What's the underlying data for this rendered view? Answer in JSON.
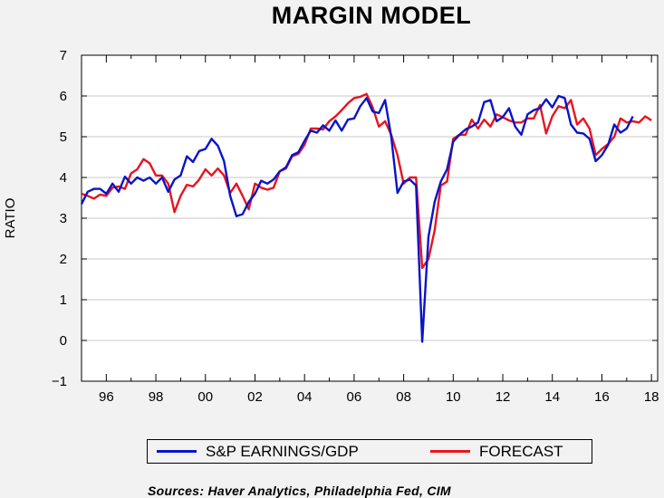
{
  "chart_data": {
    "type": "line",
    "title": "MARGIN MODEL",
    "xlabel": "",
    "ylabel": "RATIO",
    "xlim": [
      1995.0,
      2018.25
    ],
    "ylim": [
      -1,
      7
    ],
    "yticks": [
      7,
      6,
      5,
      4,
      3,
      2,
      1,
      0,
      -1
    ],
    "ytick_labels": [
      "7",
      "6",
      "5",
      "4",
      "3",
      "2",
      "1",
      "0",
      "−1"
    ],
    "xticks": [
      1996,
      1998,
      2000,
      2002,
      2004,
      2006,
      2008,
      2010,
      2012,
      2014,
      2016,
      2018
    ],
    "xtick_labels": [
      "96",
      "98",
      "00",
      "02",
      "04",
      "06",
      "08",
      "10",
      "12",
      "14",
      "16",
      "18"
    ],
    "grid": true,
    "legend_position": "bottom",
    "series": [
      {
        "name": "S&P EARNINGS/GDP",
        "color": "#0a14c8",
        "points": [
          [
            1995.0,
            3.35
          ],
          [
            1995.25,
            3.65
          ],
          [
            1995.5,
            3.72
          ],
          [
            1995.75,
            3.72
          ],
          [
            1996.0,
            3.6
          ],
          [
            1996.25,
            3.85
          ],
          [
            1996.5,
            3.65
          ],
          [
            1996.75,
            4.02
          ],
          [
            1997.0,
            3.85
          ],
          [
            1997.25,
            4.0
          ],
          [
            1997.5,
            3.92
          ],
          [
            1997.75,
            4.0
          ],
          [
            1998.0,
            3.85
          ],
          [
            1998.25,
            4.0
          ],
          [
            1998.5,
            3.65
          ],
          [
            1998.75,
            3.95
          ],
          [
            1999.0,
            4.05
          ],
          [
            1999.25,
            4.52
          ],
          [
            1999.5,
            4.38
          ],
          [
            1999.75,
            4.65
          ],
          [
            2000.0,
            4.7
          ],
          [
            2000.25,
            4.95
          ],
          [
            2000.5,
            4.78
          ],
          [
            2000.75,
            4.4
          ],
          [
            2001.0,
            3.55
          ],
          [
            2001.25,
            3.05
          ],
          [
            2001.5,
            3.1
          ],
          [
            2001.75,
            3.4
          ],
          [
            2002.0,
            3.6
          ],
          [
            2002.25,
            3.92
          ],
          [
            2002.5,
            3.85
          ],
          [
            2002.75,
            3.95
          ],
          [
            2003.0,
            4.15
          ],
          [
            2003.25,
            4.25
          ],
          [
            2003.5,
            4.55
          ],
          [
            2003.75,
            4.62
          ],
          [
            2004.0,
            4.9
          ],
          [
            2004.25,
            5.15
          ],
          [
            2004.5,
            5.1
          ],
          [
            2004.75,
            5.28
          ],
          [
            2005.0,
            5.15
          ],
          [
            2005.25,
            5.4
          ],
          [
            2005.5,
            5.15
          ],
          [
            2005.75,
            5.42
          ],
          [
            2006.0,
            5.45
          ],
          [
            2006.25,
            5.75
          ],
          [
            2006.5,
            5.95
          ],
          [
            2006.75,
            5.62
          ],
          [
            2007.0,
            5.58
          ],
          [
            2007.25,
            5.9
          ],
          [
            2007.5,
            5.0
          ],
          [
            2007.75,
            3.62
          ],
          [
            2008.0,
            3.9
          ],
          [
            2008.25,
            3.95
          ],
          [
            2008.5,
            3.8
          ],
          [
            2008.75,
            -0.03
          ],
          [
            2009.0,
            2.55
          ],
          [
            2009.25,
            3.4
          ],
          [
            2009.5,
            3.9
          ],
          [
            2009.75,
            4.2
          ],
          [
            2010.0,
            4.88
          ],
          [
            2010.25,
            5.05
          ],
          [
            2010.5,
            5.18
          ],
          [
            2010.75,
            5.25
          ],
          [
            2011.0,
            5.35
          ],
          [
            2011.25,
            5.85
          ],
          [
            2011.5,
            5.9
          ],
          [
            2011.75,
            5.38
          ],
          [
            2012.0,
            5.48
          ],
          [
            2012.25,
            5.7
          ],
          [
            2012.5,
            5.25
          ],
          [
            2012.75,
            5.05
          ],
          [
            2013.0,
            5.55
          ],
          [
            2013.25,
            5.65
          ],
          [
            2013.5,
            5.7
          ],
          [
            2013.75,
            5.92
          ],
          [
            2014.0,
            5.72
          ],
          [
            2014.25,
            6.0
          ],
          [
            2014.5,
            5.95
          ],
          [
            2014.75,
            5.3
          ],
          [
            2015.0,
            5.1
          ],
          [
            2015.25,
            5.08
          ],
          [
            2015.5,
            4.95
          ],
          [
            2015.75,
            4.4
          ],
          [
            2016.0,
            4.55
          ],
          [
            2016.25,
            4.8
          ],
          [
            2016.5,
            5.3
          ],
          [
            2016.75,
            5.1
          ],
          [
            2017.0,
            5.2
          ],
          [
            2017.25,
            5.5
          ]
        ]
      },
      {
        "name": "FORECAST",
        "color": "#e8141e",
        "points": [
          [
            1995.0,
            3.6
          ],
          [
            1995.25,
            3.55
          ],
          [
            1995.5,
            3.48
          ],
          [
            1995.75,
            3.58
          ],
          [
            1996.0,
            3.55
          ],
          [
            1996.25,
            3.75
          ],
          [
            1996.5,
            3.78
          ],
          [
            1996.75,
            3.72
          ],
          [
            1997.0,
            4.1
          ],
          [
            1997.25,
            4.2
          ],
          [
            1997.5,
            4.45
          ],
          [
            1997.75,
            4.35
          ],
          [
            1998.0,
            4.05
          ],
          [
            1998.25,
            4.05
          ],
          [
            1998.5,
            3.85
          ],
          [
            1998.75,
            3.15
          ],
          [
            1999.0,
            3.55
          ],
          [
            1999.25,
            3.82
          ],
          [
            1999.5,
            3.78
          ],
          [
            1999.75,
            3.95
          ],
          [
            2000.0,
            4.2
          ],
          [
            2000.25,
            4.05
          ],
          [
            2000.5,
            4.22
          ],
          [
            2000.75,
            4.05
          ],
          [
            2001.0,
            3.62
          ],
          [
            2001.25,
            3.85
          ],
          [
            2001.5,
            3.55
          ],
          [
            2001.75,
            3.22
          ],
          [
            2002.0,
            3.85
          ],
          [
            2002.25,
            3.75
          ],
          [
            2002.5,
            3.7
          ],
          [
            2002.75,
            3.75
          ],
          [
            2003.0,
            4.15
          ],
          [
            2003.25,
            4.22
          ],
          [
            2003.5,
            4.52
          ],
          [
            2003.75,
            4.58
          ],
          [
            2004.0,
            4.8
          ],
          [
            2004.25,
            5.2
          ],
          [
            2004.5,
            5.2
          ],
          [
            2004.75,
            5.18
          ],
          [
            2005.0,
            5.38
          ],
          [
            2005.25,
            5.5
          ],
          [
            2005.5,
            5.65
          ],
          [
            2005.75,
            5.82
          ],
          [
            2006.0,
            5.95
          ],
          [
            2006.25,
            5.98
          ],
          [
            2006.5,
            6.05
          ],
          [
            2006.75,
            5.72
          ],
          [
            2007.0,
            5.25
          ],
          [
            2007.25,
            5.38
          ],
          [
            2007.5,
            5.05
          ],
          [
            2007.75,
            4.55
          ],
          [
            2008.0,
            3.85
          ],
          [
            2008.25,
            4.0
          ],
          [
            2008.5,
            4.0
          ],
          [
            2008.75,
            1.78
          ],
          [
            2009.0,
            2.0
          ],
          [
            2009.25,
            2.7
          ],
          [
            2009.5,
            3.8
          ],
          [
            2009.75,
            3.9
          ],
          [
            2010.0,
            4.95
          ],
          [
            2010.25,
            5.05
          ],
          [
            2010.5,
            5.05
          ],
          [
            2010.75,
            5.42
          ],
          [
            2011.0,
            5.2
          ],
          [
            2011.25,
            5.42
          ],
          [
            2011.5,
            5.25
          ],
          [
            2011.75,
            5.55
          ],
          [
            2012.0,
            5.48
          ],
          [
            2012.25,
            5.4
          ],
          [
            2012.5,
            5.35
          ],
          [
            2012.75,
            5.35
          ],
          [
            2013.0,
            5.45
          ],
          [
            2013.25,
            5.45
          ],
          [
            2013.5,
            5.78
          ],
          [
            2013.75,
            5.08
          ],
          [
            2014.0,
            5.5
          ],
          [
            2014.25,
            5.75
          ],
          [
            2014.5,
            5.7
          ],
          [
            2014.75,
            5.9
          ],
          [
            2015.0,
            5.3
          ],
          [
            2015.25,
            5.45
          ],
          [
            2015.5,
            5.2
          ],
          [
            2015.75,
            4.55
          ],
          [
            2016.0,
            4.7
          ],
          [
            2016.25,
            4.82
          ],
          [
            2016.5,
            5.0
          ],
          [
            2016.75,
            5.45
          ],
          [
            2017.0,
            5.35
          ],
          [
            2017.25,
            5.38
          ],
          [
            2017.5,
            5.35
          ],
          [
            2017.75,
            5.5
          ],
          [
            2018.0,
            5.4
          ]
        ]
      }
    ]
  },
  "legend": {
    "items": [
      {
        "label": "S&P EARNINGS/GDP",
        "color": "#0a14c8"
      },
      {
        "label": "FORECAST",
        "color": "#e8141e"
      }
    ]
  },
  "source_note": "Sources:  Haver Analytics, Philadelphia Fed, CIM"
}
